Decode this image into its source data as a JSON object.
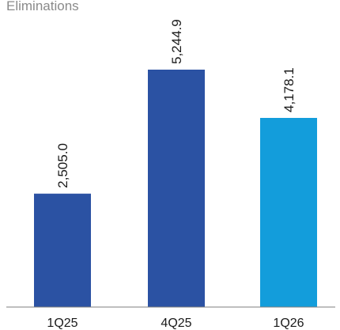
{
  "chart_data": {
    "type": "bar",
    "title": "Eliminations",
    "xlabel": "",
    "ylabel": "",
    "categories": [
      "1Q25",
      "4Q25",
      "1Q26"
    ],
    "values": [
      2505.0,
      5244.9,
      4178.1
    ],
    "data_labels": [
      "2,505.0",
      "5,244.9",
      "4,178.1"
    ],
    "colors": [
      "#2b52a3",
      "#2b52a3",
      "#139ddb"
    ],
    "axis_color": "#7f7f7f",
    "ylim": [
      0,
      6000
    ],
    "grid": false,
    "legend": "none"
  }
}
